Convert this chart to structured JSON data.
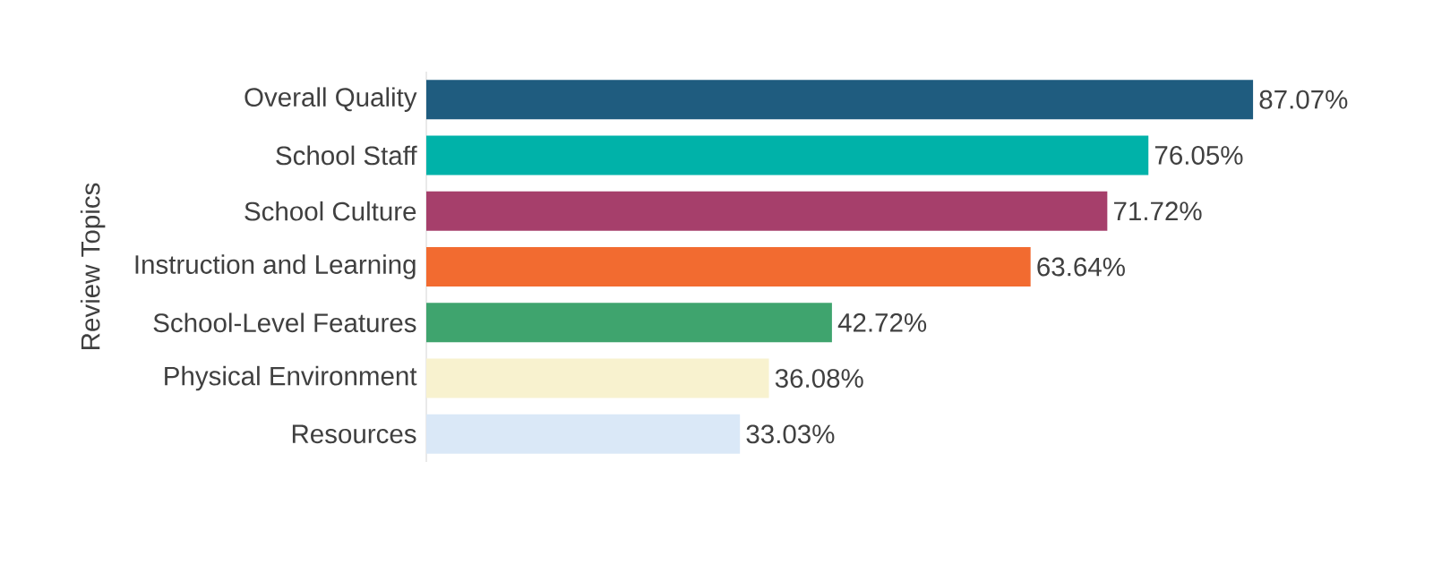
{
  "chart_data": {
    "type": "bar",
    "orientation": "horizontal",
    "ylabel": "Review Topics",
    "categories": [
      "Overall Quality",
      "School Staff",
      "School Culture",
      "Instruction and Learning",
      "School-Level Features",
      "Physical Environment",
      "Resources"
    ],
    "values": [
      87.07,
      76.05,
      71.72,
      63.64,
      42.72,
      36.08,
      33.03
    ],
    "value_labels": [
      "87.07%",
      "76.05%",
      "71.72%",
      "63.64%",
      "42.72%",
      "36.08%",
      "33.03%"
    ],
    "colors": [
      "#1f5c7f",
      "#00b2a9",
      "#a63f6b",
      "#f26b30",
      "#3fa46e",
      "#f8f2cf",
      "#dae8f7"
    ],
    "tick_labels": "y"
  }
}
